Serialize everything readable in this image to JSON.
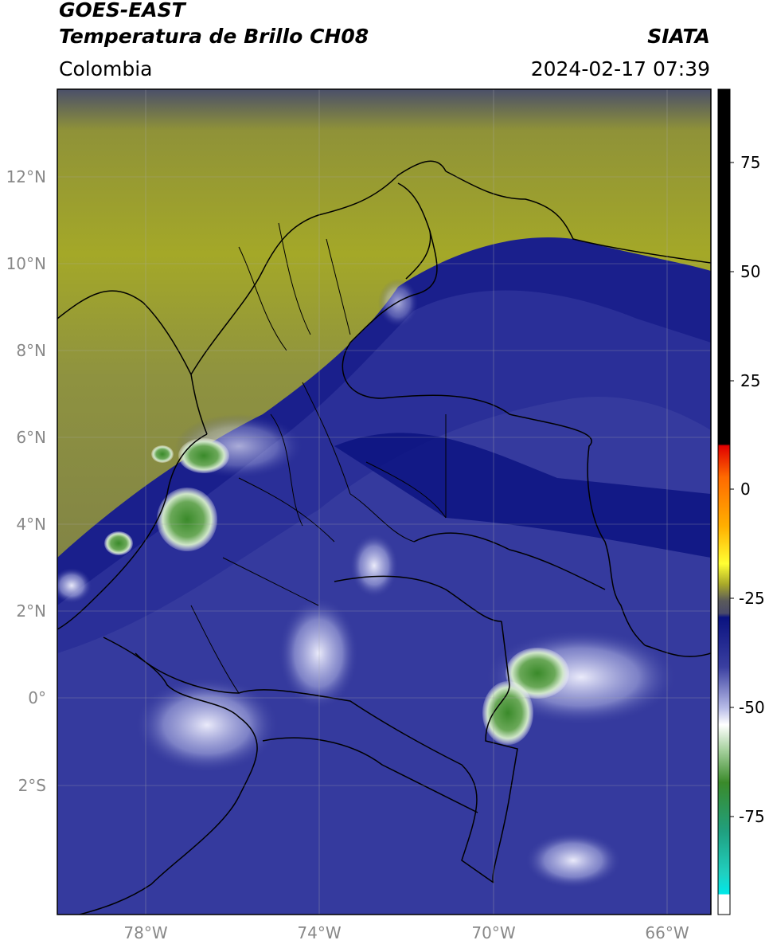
{
  "header": {
    "satellite": "GOES-EAST",
    "product": "Temperatura de Brillo CH08",
    "region": "Colombia",
    "agency": "SIATA",
    "datetime": "2024-02-17 07:39"
  },
  "map": {
    "lat_labels": [
      "12°N",
      "10°N",
      "8°N",
      "6°N",
      "4°N",
      "2°N",
      "0°",
      "2°S"
    ],
    "lon_labels": [
      "78°W",
      "74°W",
      "70°W",
      "66°W"
    ],
    "gridlines": true
  },
  "colorbar": {
    "tick_labels": [
      "75",
      "50",
      "25",
      "0",
      "-25",
      "-50",
      "-75"
    ],
    "colors": {
      "warm": "#000000",
      "red": "#e00000",
      "orange": "#ff9900",
      "yellow": "#ffff33",
      "olive": "#a8a82a",
      "gray": "#5a5a5a",
      "navy": "#0a1280",
      "blue_light": "#8b90d8",
      "white": "#ffffff",
      "green": "#3a8a2a",
      "teal": "#20c8b0",
      "cyan": "#00e8e8"
    }
  }
}
